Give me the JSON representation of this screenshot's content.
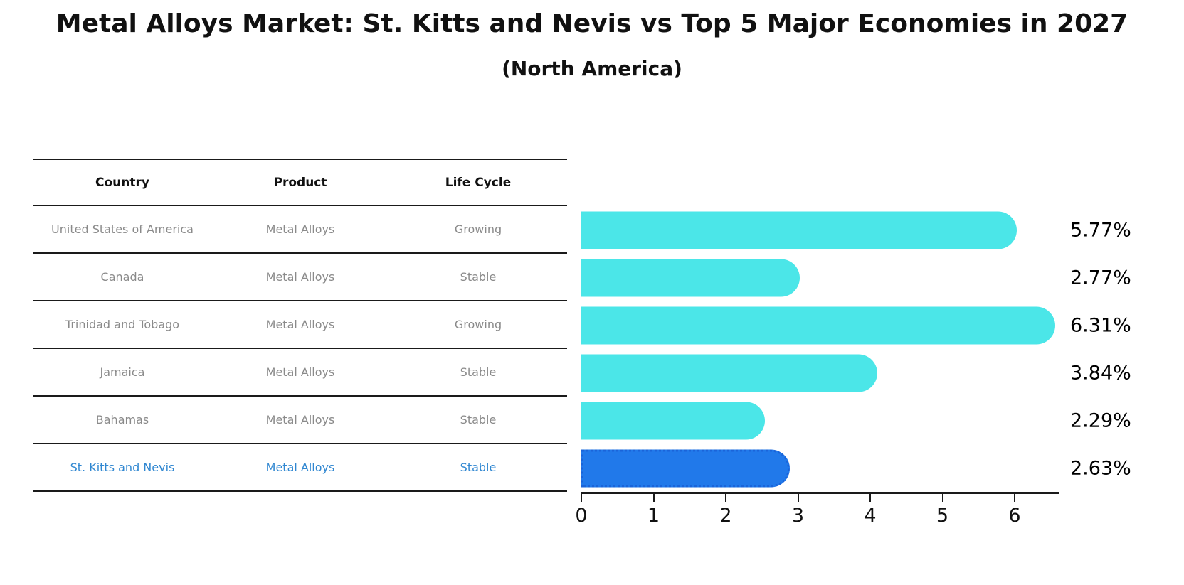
{
  "title": "Metal Alloys Market: St. Kitts and Nevis vs Top 5 Major Economies in 2027",
  "subtitle": "(North America)",
  "table": {
    "headers": [
      "Country",
      "Product",
      "Life Cycle"
    ],
    "rows": [
      {
        "country": "United States of America",
        "product": "Metal Alloys",
        "life_cycle": "Growing",
        "highlight": false
      },
      {
        "country": "Canada",
        "product": "Metal Alloys",
        "life_cycle": "Stable",
        "highlight": false
      },
      {
        "country": "Trinidad and Tobago",
        "product": "Metal Alloys",
        "life_cycle": "Growing",
        "highlight": false
      },
      {
        "country": "Jamaica",
        "product": "Metal Alloys",
        "life_cycle": "Stable",
        "highlight": false
      },
      {
        "country": "Bahamas",
        "product": "Metal Alloys",
        "life_cycle": "Stable",
        "highlight": false
      },
      {
        "country": "St. Kitts and Nevis",
        "product": "Metal Alloys",
        "life_cycle": "Stable",
        "highlight": true
      }
    ]
  },
  "chart_data": {
    "type": "bar",
    "orientation": "horizontal",
    "title": "Metal Alloys Market: St. Kitts and Nevis vs Top 5 Major Economies in 2027",
    "subtitle": "(North America)",
    "categories": [
      "United States of America",
      "Canada",
      "Trinidad and Tobago",
      "Jamaica",
      "Bahamas",
      "St. Kitts and Nevis"
    ],
    "values": [
      5.77,
      2.77,
      6.31,
      3.84,
      2.29,
      2.63
    ],
    "value_labels": [
      "5.77%",
      "2.77%",
      "6.31%",
      "3.84%",
      "2.29%",
      "2.63%"
    ],
    "x_ticks": [
      0,
      1,
      2,
      3,
      4,
      5,
      6
    ],
    "xlim": [
      0,
      6.6
    ],
    "grid": false,
    "legend": false,
    "bar_color": "#4BE6E8",
    "highlight_index": 5,
    "highlight_color": "#2179EA",
    "highlight_border_color": "#1A64D9",
    "highlight_text_color": "#3087D1",
    "muted_text_color": "#8A8A8A",
    "axis_color": "#1A1A1A"
  }
}
